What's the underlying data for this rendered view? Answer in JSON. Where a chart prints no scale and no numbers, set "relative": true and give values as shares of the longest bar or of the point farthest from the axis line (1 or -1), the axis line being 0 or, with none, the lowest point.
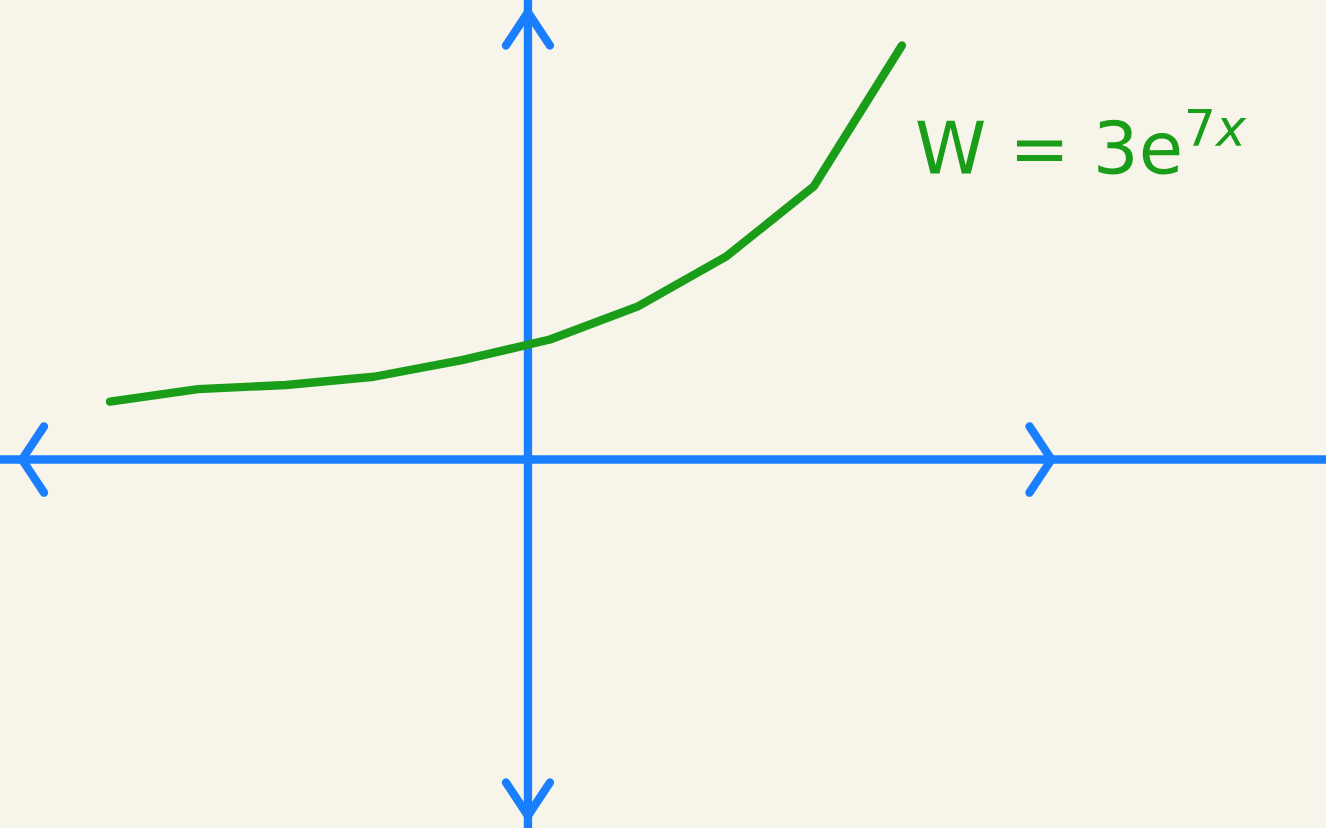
{
  "chart_data": {
    "type": "line",
    "relative": true,
    "categories": [
      null,
      null,
      null,
      null,
      null,
      null,
      null,
      null,
      null,
      null
    ],
    "series": [
      {
        "color": "#1a9e1a",
        "values": [
          0.14,
          0.17,
          0.18,
          0.2,
          0.24,
          0.29,
          0.37,
          0.49,
          0.66,
          1.0
        ]
      }
    ],
    "annotations": [
      "W = 3e$^{7x}$"
    ],
    "legend": false
  }
}
